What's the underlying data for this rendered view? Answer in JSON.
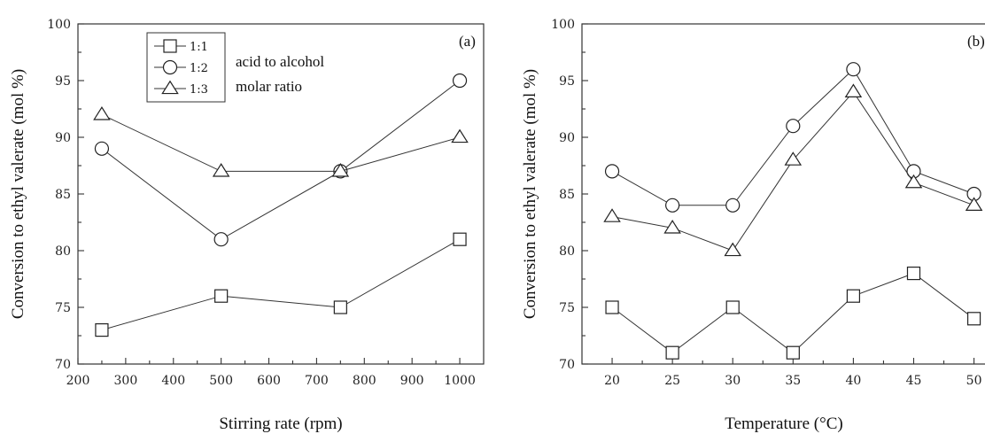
{
  "chart_data": [
    {
      "type": "line",
      "panel_label": "(a)",
      "xlabel": "Stirring rate (rpm)",
      "ylabel": "Conversion to ethyl valerate (mol %)",
      "xlim": [
        200,
        1050
      ],
      "ylim": [
        70,
        100
      ],
      "x_ticks": [
        200,
        300,
        400,
        500,
        600,
        700,
        800,
        900,
        1000
      ],
      "y_ticks": [
        70,
        75,
        80,
        85,
        90,
        95,
        100
      ],
      "x": [
        250,
        500,
        750,
        1000
      ],
      "series": [
        {
          "name": "1:1",
          "marker": "square",
          "values": [
            73,
            76,
            75,
            81
          ]
        },
        {
          "name": "1:2",
          "marker": "circle",
          "values": [
            89,
            81,
            87,
            95
          ]
        },
        {
          "name": "1:3",
          "marker": "triangle",
          "values": [
            92,
            87,
            87,
            90
          ]
        }
      ],
      "legend": {
        "placement": "top-left",
        "note_lines": [
          "acid to alcohol",
          "molar ratio"
        ]
      }
    },
    {
      "type": "line",
      "panel_label": "(b)",
      "xlabel": "Temperature (°C)",
      "ylabel": "Conversion to ethyl valerate (mol %)",
      "xlim": [
        17.5,
        51.5
      ],
      "ylim": [
        70,
        100
      ],
      "x_ticks": [
        20,
        25,
        30,
        35,
        40,
        45,
        50
      ],
      "y_ticks": [
        70,
        75,
        80,
        85,
        90,
        95,
        100
      ],
      "x": [
        20,
        25,
        30,
        35,
        40,
        45,
        50
      ],
      "series": [
        {
          "name": "1:1",
          "marker": "square",
          "values": [
            75,
            71,
            75,
            71,
            76,
            78,
            74
          ]
        },
        {
          "name": "1:2",
          "marker": "circle",
          "values": [
            87,
            84,
            84,
            91,
            96,
            87,
            85
          ]
        },
        {
          "name": "1:3",
          "marker": "triangle",
          "values": [
            83,
            82,
            80,
            88,
            94,
            86,
            84
          ]
        }
      ]
    }
  ]
}
